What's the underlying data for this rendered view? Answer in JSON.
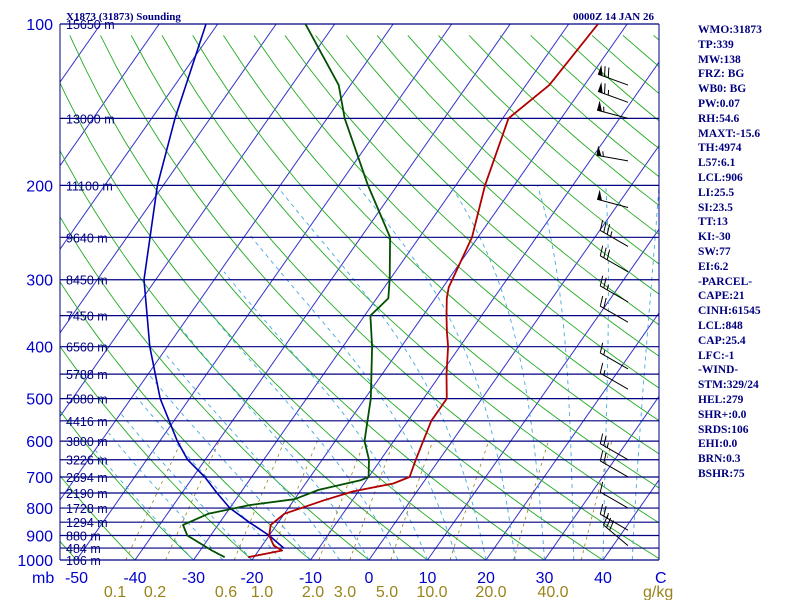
{
  "chart_data": {
    "type": "line",
    "title": "X1873 (31873) Sounding",
    "valid_time": "0000Z 14 JAN 26",
    "x_axis": {
      "unit_label": "C",
      "pressure_unit_label": "mb",
      "tick_labels": [
        "-50",
        "-40",
        "-30",
        "-20",
        "-10",
        "0",
        "10",
        "20",
        "30",
        "40"
      ],
      "range": [
        -50,
        50
      ]
    },
    "y_axis": {
      "scale": "log-pressure",
      "range": [
        1000,
        100
      ],
      "tick_labels": [
        "100",
        "200",
        "300",
        "400",
        "500",
        "600",
        "700",
        "800",
        "900",
        "1000"
      ]
    },
    "height_labels": [
      {
        "p": 100,
        "label": "15650 m"
      },
      {
        "p": 150,
        "label": "13000 m"
      },
      {
        "p": 200,
        "label": "11100 m"
      },
      {
        "p": 250,
        "label": "9640 m"
      },
      {
        "p": 300,
        "label": "8450 m"
      },
      {
        "p": 350,
        "label": "7450 m"
      },
      {
        "p": 400,
        "label": "6560 m"
      },
      {
        "p": 450,
        "label": "5788 m"
      },
      {
        "p": 500,
        "label": "5080 m"
      },
      {
        "p": 550,
        "label": "4416 m"
      },
      {
        "p": 600,
        "label": "3800 m"
      },
      {
        "p": 650,
        "label": "3226 m"
      },
      {
        "p": 700,
        "label": "2694 m"
      },
      {
        "p": 750,
        "label": "2190 m"
      },
      {
        "p": 800,
        "label": "1728 m"
      },
      {
        "p": 850,
        "label": "1294 m"
      },
      {
        "p": 900,
        "label": "880 m"
      },
      {
        "p": 950,
        "label": "484 m"
      },
      {
        "p": 1000,
        "label": "106 m"
      }
    ],
    "mixing_ratio_labels": {
      "unit": "g/kg",
      "values": [
        "0.1",
        "0.2",
        "0.6",
        "1.0",
        "2.0",
        "3.0",
        "5.0",
        "10.0",
        "20.0",
        "40.0"
      ]
    },
    "series": [
      {
        "color": "#b00000",
        "points": [
          {
            "p": 988,
            "t": -21
          },
          {
            "p": 960,
            "t": -16
          },
          {
            "p": 940,
            "t": -18
          },
          {
            "p": 900,
            "t": -20
          },
          {
            "p": 860,
            "t": -21
          },
          {
            "p": 820,
            "t": -20
          },
          {
            "p": 775,
            "t": -15
          },
          {
            "p": 745,
            "t": -11
          },
          {
            "p": 720,
            "t": -5
          },
          {
            "p": 700,
            "t": -3
          },
          {
            "p": 650,
            "t": -4
          },
          {
            "p": 550,
            "t": -6
          },
          {
            "p": 500,
            "t": -6
          },
          {
            "p": 450,
            "t": -9
          },
          {
            "p": 400,
            "t": -12
          },
          {
            "p": 375,
            "t": -14
          },
          {
            "p": 350,
            "t": -16
          },
          {
            "p": 325,
            "t": -18
          },
          {
            "p": 310,
            "t": -19
          },
          {
            "p": 250,
            "t": -21
          },
          {
            "p": 200,
            "t": -25
          },
          {
            "p": 150,
            "t": -29
          },
          {
            "p": 130,
            "t": -26
          },
          {
            "p": 100,
            "t": -25
          }
        ]
      },
      {
        "color": "#005000",
        "points": [
          {
            "p": 988,
            "t": -25
          },
          {
            "p": 960,
            "t": -28
          },
          {
            "p": 900,
            "t": -34
          },
          {
            "p": 860,
            "t": -36
          },
          {
            "p": 820,
            "t": -33
          },
          {
            "p": 790,
            "t": -27
          },
          {
            "p": 770,
            "t": -20
          },
          {
            "p": 740,
            "t": -17
          },
          {
            "p": 710,
            "t": -11
          },
          {
            "p": 700,
            "t": -10
          },
          {
            "p": 650,
            "t": -12
          },
          {
            "p": 600,
            "t": -15
          },
          {
            "p": 500,
            "t": -19
          },
          {
            "p": 400,
            "t": -25
          },
          {
            "p": 350,
            "t": -29
          },
          {
            "p": 325,
            "t": -28
          },
          {
            "p": 300,
            "t": -30
          },
          {
            "p": 250,
            "t": -35
          },
          {
            "p": 200,
            "t": -45
          },
          {
            "p": 150,
            "t": -57
          },
          {
            "p": 130,
            "t": -62
          },
          {
            "p": 100,
            "t": -75
          }
        ]
      },
      {
        "color": "#0000b0",
        "points": [
          {
            "p": 950,
            "t": -16
          },
          {
            "p": 900,
            "t": -20
          },
          {
            "p": 850,
            "t": -25
          },
          {
            "p": 800,
            "t": -30
          },
          {
            "p": 750,
            "t": -34
          },
          {
            "p": 700,
            "t": -38
          },
          {
            "p": 650,
            "t": -43
          },
          {
            "p": 600,
            "t": -47
          },
          {
            "p": 500,
            "t": -55
          },
          {
            "p": 400,
            "t": -63
          },
          {
            "p": 300,
            "t": -72
          },
          {
            "p": 200,
            "t": -81
          },
          {
            "p": 150,
            "t": -86
          },
          {
            "p": 100,
            "t": -92
          }
        ]
      }
    ],
    "wind_barbs": [
      {
        "p": 130,
        "dir": 290,
        "speed": 70
      },
      {
        "p": 140,
        "dir": 290,
        "speed": 65
      },
      {
        "p": 150,
        "dir": 285,
        "speed": 55
      },
      {
        "p": 180,
        "dir": 280,
        "speed": 55
      },
      {
        "p": 220,
        "dir": 285,
        "speed": 50
      },
      {
        "p": 260,
        "dir": 300,
        "speed": 35
      },
      {
        "p": 290,
        "dir": 300,
        "speed": 30
      },
      {
        "p": 330,
        "dir": 300,
        "speed": 25
      },
      {
        "p": 360,
        "dir": 300,
        "speed": 20
      },
      {
        "p": 440,
        "dir": 300,
        "speed": 15
      },
      {
        "p": 480,
        "dir": 300,
        "speed": 15
      },
      {
        "p": 650,
        "dir": 300,
        "speed": 25
      },
      {
        "p": 700,
        "dir": 300,
        "speed": 20
      },
      {
        "p": 800,
        "dir": 300,
        "speed": 10
      },
      {
        "p": 880,
        "dir": 300,
        "speed": 25
      },
      {
        "p": 940,
        "dir": 310,
        "speed": 30
      }
    ]
  },
  "indices": [
    "WMO:31873",
    "TP:339",
    "MW:138",
    "FRZ: BG",
    "WB0: BG",
    "PW:0.07",
    "RH:54.6",
    "MAXT:-15.6",
    "TH:4974",
    "L57:6.1",
    "LCL:906",
    "LI:25.5",
    "SI:23.5",
    "TT:13",
    "KI:-30",
    "SW:77",
    "EI:6.2",
    "-PARCEL-",
    "CAPE:21",
    "CINH:61545",
    "LCL:848",
    "CAP:25.4",
    "LFC:-1",
    "-WIND-",
    "STM:329/24",
    "HEL:279",
    "SHR+:0.0",
    "SRDS:106",
    "EHI:0.0",
    "BRN:0.3",
    "BSHR:75"
  ],
  "colors": {
    "isobar": "#000080",
    "isotherm": "#3333cc",
    "dry_adiabat": "#22aa22",
    "moist_adiabat": "#44aadd",
    "mixing_ratio": "#99841a",
    "temperature": "#b00000",
    "dewpoint": "#005000",
    "parcel": "#0000b0",
    "wind_barb": "#000000"
  }
}
